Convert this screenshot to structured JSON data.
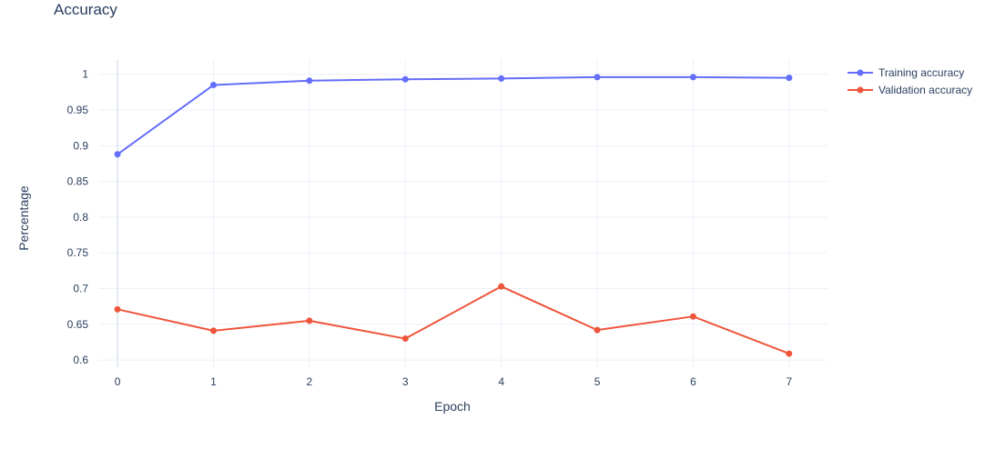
{
  "chart_data": {
    "type": "line",
    "title": "Accuracy",
    "xlabel": "Epoch",
    "ylabel": "Percentage",
    "x": [
      0,
      1,
      2,
      3,
      4,
      5,
      6,
      7
    ],
    "x_ticks": [
      "0",
      "1",
      "2",
      "3",
      "4",
      "5",
      "6",
      "7"
    ],
    "y_ticks": [
      "0.6",
      "0.65",
      "0.7",
      "0.75",
      "0.8",
      "0.85",
      "0.9",
      "0.95",
      "1"
    ],
    "y_tick_values": [
      0.6,
      0.65,
      0.7,
      0.75,
      0.8,
      0.85,
      0.9,
      0.95,
      1.0
    ],
    "xlim": [
      -0.2,
      7.4
    ],
    "ylim": [
      0.59,
      1.02
    ],
    "grid": true,
    "legend_position": "top-right",
    "series": [
      {
        "name": "Training accuracy",
        "color": "#636efa",
        "values": [
          0.888,
          0.985,
          0.991,
          0.993,
          0.994,
          0.996,
          0.996,
          0.995
        ]
      },
      {
        "name": "Validation accuracy",
        "color": "#ef553b",
        "values": [
          0.671,
          0.641,
          0.655,
          0.63,
          0.703,
          0.642,
          0.661,
          0.609
        ]
      }
    ]
  }
}
